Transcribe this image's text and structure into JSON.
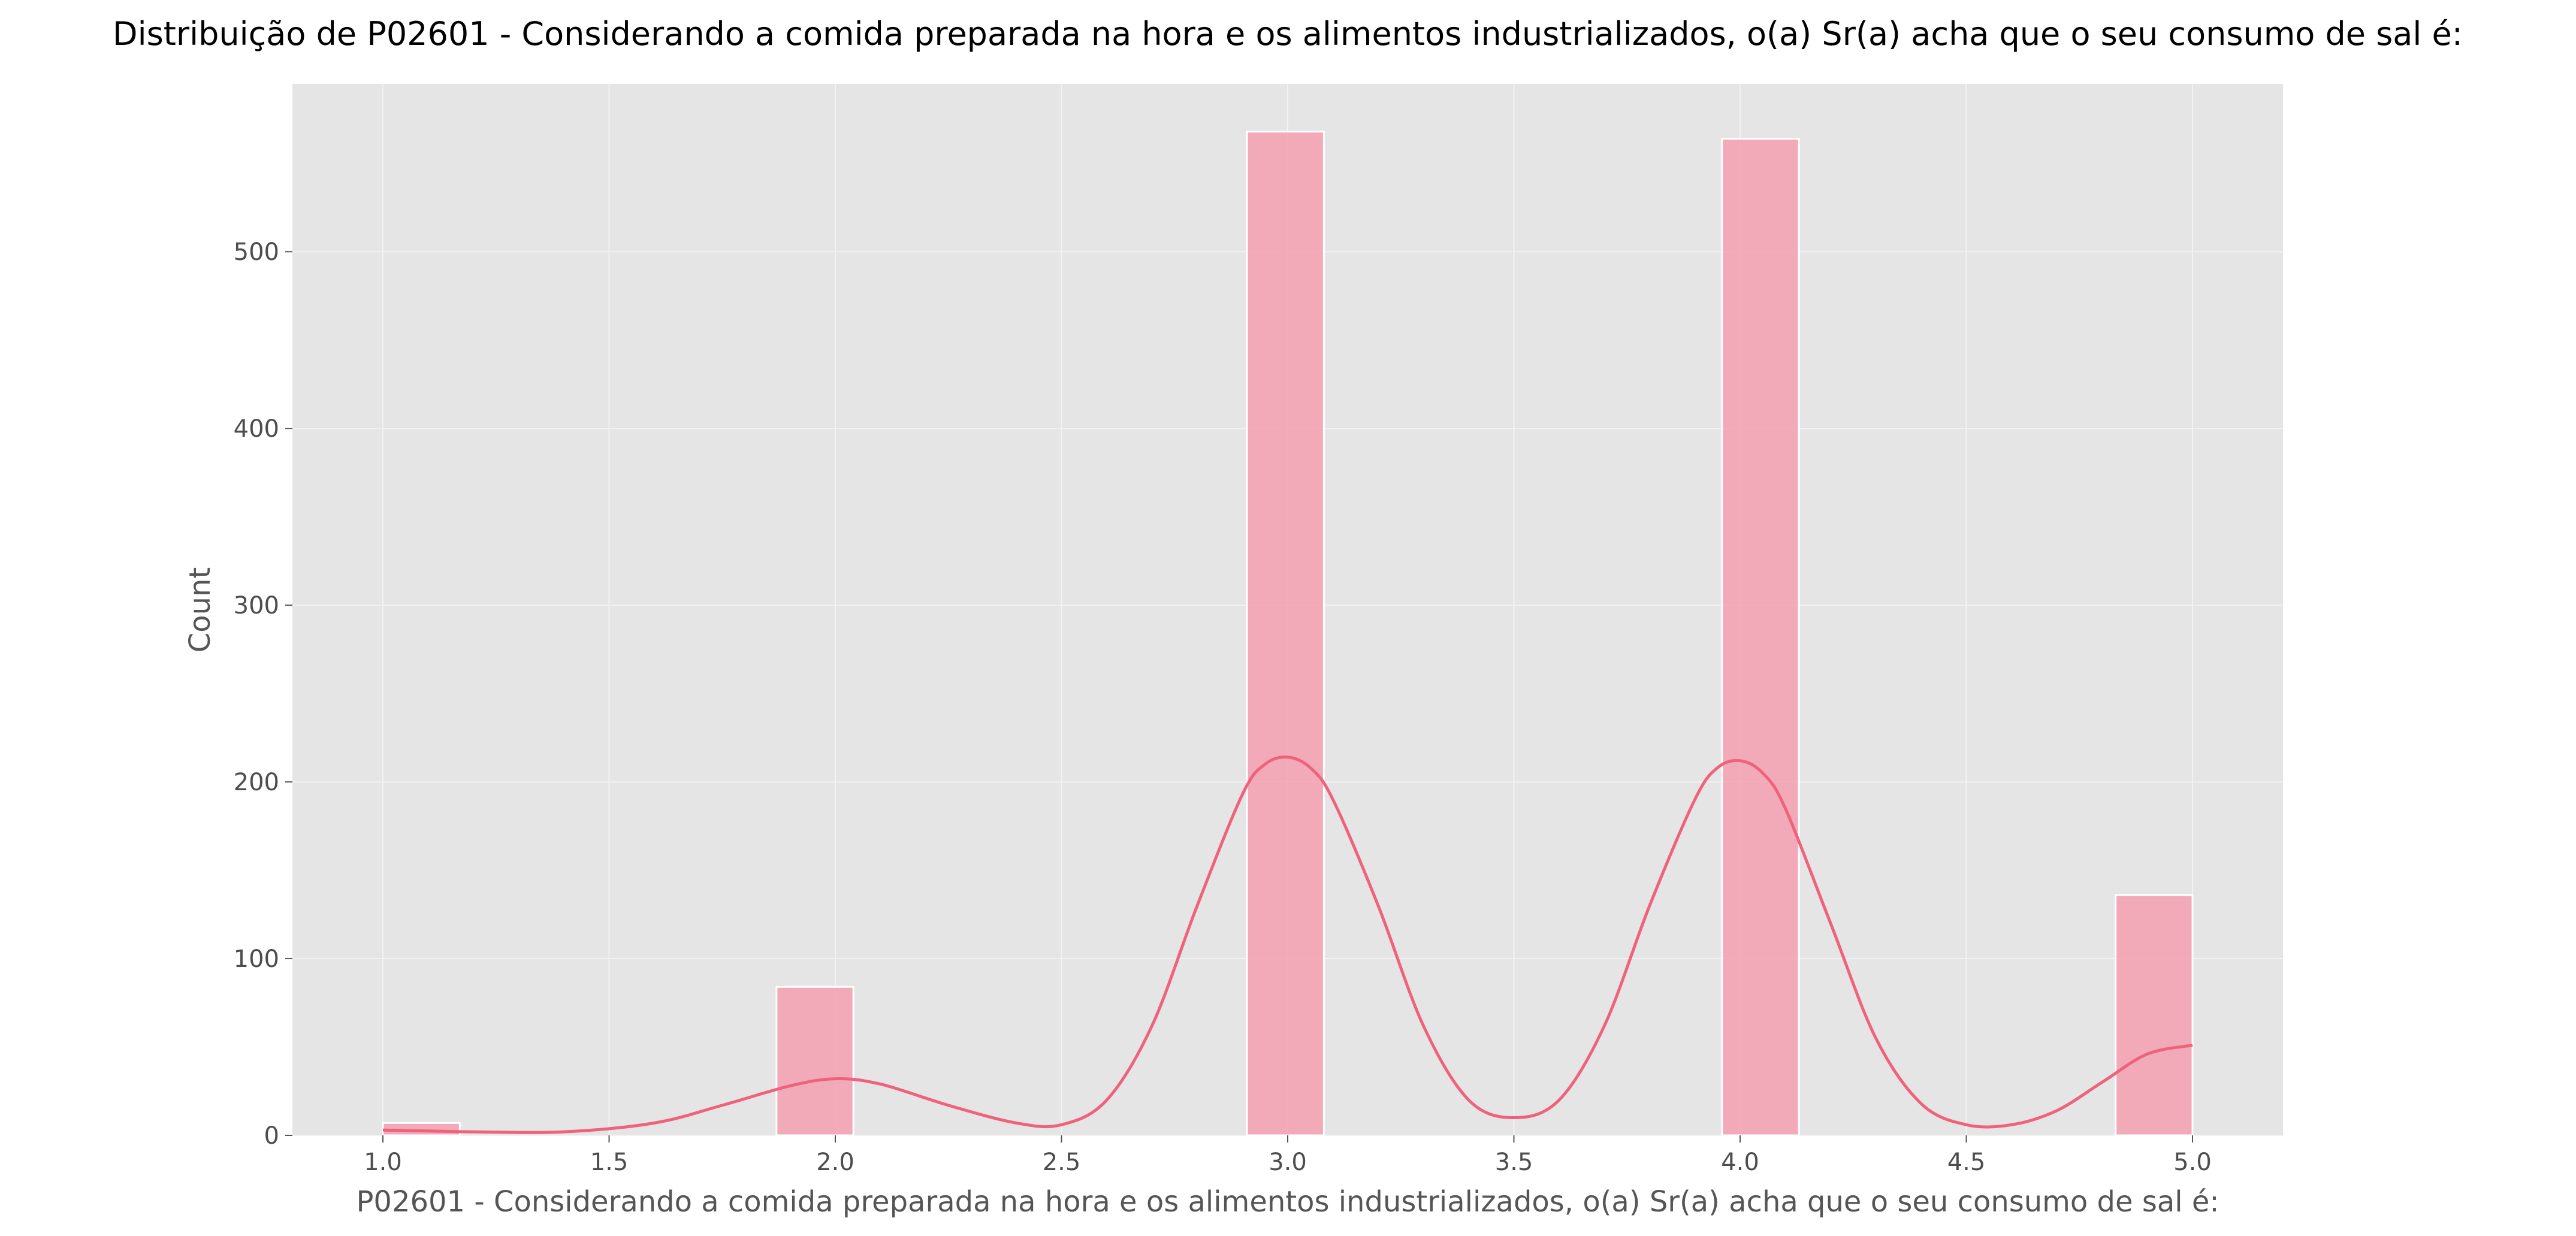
{
  "chart_data": {
    "type": "bar",
    "subtype": "histogram-with-kde",
    "title": "Distribuição de P02601 - Considerando a comida preparada na hora e os alimentos industrializados, o(a) Sr(a) acha que o seu consumo de sal é:",
    "xlabel": "P02601 - Considerando a comida preparada na hora e os alimentos industrializados, o(a) Sr(a) acha que o seu consumo de sal é:",
    "ylabel": "Count",
    "xlim": [
      0.8,
      5.2
    ],
    "ylim": [
      0,
      595
    ],
    "x_ticks": [
      "1.0",
      "1.5",
      "2.0",
      "2.5",
      "3.0",
      "3.5",
      "4.0",
      "4.5",
      "5.0"
    ],
    "y_ticks": [
      "0",
      "100",
      "200",
      "300",
      "400",
      "500"
    ],
    "grid": true,
    "colors": {
      "background": "#E5E5E5",
      "bar_fill": "#F4A0B2",
      "bar_edge": "#FFFFFF",
      "kde_line": "#F0627C",
      "grid": "#F2F2F2"
    },
    "bins": [
      {
        "x_start": 1.0,
        "x_end": 1.17,
        "count": 7
      },
      {
        "x_start": 1.87,
        "x_end": 2.04,
        "count": 84
      },
      {
        "x_start": 2.91,
        "x_end": 3.08,
        "count": 568
      },
      {
        "x_start": 3.96,
        "x_end": 4.13,
        "count": 564
      },
      {
        "x_start": 4.83,
        "x_end": 5.0,
        "count": 136
      }
    ],
    "kde": {
      "x": [
        1.0,
        1.2,
        1.4,
        1.6,
        1.75,
        1.9,
        2.0,
        2.1,
        2.25,
        2.4,
        2.5,
        2.6,
        2.7,
        2.8,
        2.9,
        2.95,
        3.0,
        3.05,
        3.1,
        3.2,
        3.3,
        3.4,
        3.5,
        3.6,
        3.7,
        3.8,
        3.9,
        3.95,
        4.0,
        4.05,
        4.1,
        4.2,
        4.3,
        4.4,
        4.5,
        4.6,
        4.7,
        4.8,
        4.9,
        5.0
      ],
      "y": [
        3,
        2,
        2,
        7,
        17,
        28,
        32,
        29,
        17,
        7,
        6,
        20,
        62,
        130,
        193,
        210,
        214,
        208,
        190,
        130,
        62,
        20,
        10,
        20,
        62,
        130,
        190,
        208,
        212,
        205,
        185,
        120,
        55,
        18,
        6,
        6,
        14,
        30,
        46,
        51
      ]
    }
  }
}
